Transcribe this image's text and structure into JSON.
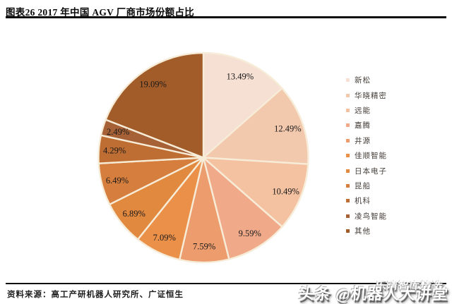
{
  "header": {
    "title": "图表26 2017 年中国 AGV 厂商市场份额占比"
  },
  "footer": {
    "source": "资料来源：高工产研机器人研究所、广证恒生"
  },
  "watermark": {
    "line1": "乐晴智库精选",
    "line2": "头条 @机器人大讲堂"
  },
  "chart_data": {
    "type": "pie",
    "title": "2017 年中国 AGV 厂商市场份额占比",
    "legend_position": "right",
    "start_angle_deg": 0,
    "direction": "clockwise",
    "categories": [
      "新松",
      "华晓精密",
      "远能",
      "嘉腾",
      "井源",
      "佳顺智能",
      "日本电子",
      "昆船",
      "机科",
      "凌鸟智能",
      "其他"
    ],
    "values": [
      13.49,
      12.49,
      10.49,
      9.59,
      7.59,
      7.09,
      6.89,
      6.49,
      4.29,
      2.49,
      19.09
    ],
    "labels": [
      "13.49%",
      "12.49%",
      "10.49%",
      "9.59%",
      "7.59%",
      "7.09%",
      "6.89%",
      "6.49%",
      "4.29%",
      "2.49%",
      "19.09%"
    ],
    "colors": [
      "#f6dfd3",
      "#f3c9ae",
      "#f4c1a1",
      "#f0aa89",
      "#ed9c6e",
      "#eb9049",
      "#e28940",
      "#d67e3d",
      "#bf6e33",
      "#a66136",
      "#a25c29"
    ]
  },
  "style": {
    "separator_color": "#f7ecd8",
    "label_color": "#191919"
  }
}
